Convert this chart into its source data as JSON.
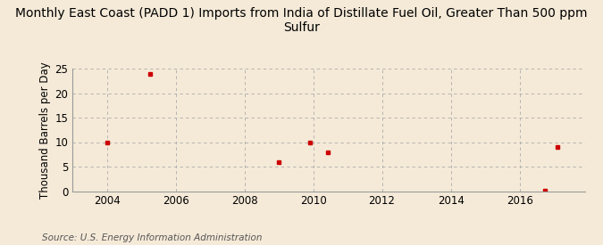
{
  "title": "Monthly East Coast (PADD 1) Imports from India of Distillate Fuel Oil, Greater Than 500 ppm\nSulfur",
  "ylabel": "Thousand Barrels per Day",
  "source": "Source: U.S. Energy Information Administration",
  "background_color": "#f5ead8",
  "plot_bg_color": "#f5ead8",
  "grid_color": "#aaaaaa",
  "marker_color": "#cc0000",
  "x_data": [
    2004.0,
    2005.25,
    2009.0,
    2009.92,
    2010.42,
    2016.75,
    2017.1
  ],
  "y_data": [
    10.0,
    24.0,
    6.0,
    10.0,
    8.0,
    0.15,
    9.0
  ],
  "xlim": [
    2003.0,
    2017.9
  ],
  "ylim": [
    0,
    25
  ],
  "yticks": [
    0,
    5,
    10,
    15,
    20,
    25
  ],
  "xticks": [
    2004,
    2006,
    2008,
    2010,
    2012,
    2014,
    2016
  ],
  "title_fontsize": 10,
  "label_fontsize": 8.5,
  "source_fontsize": 7.5
}
